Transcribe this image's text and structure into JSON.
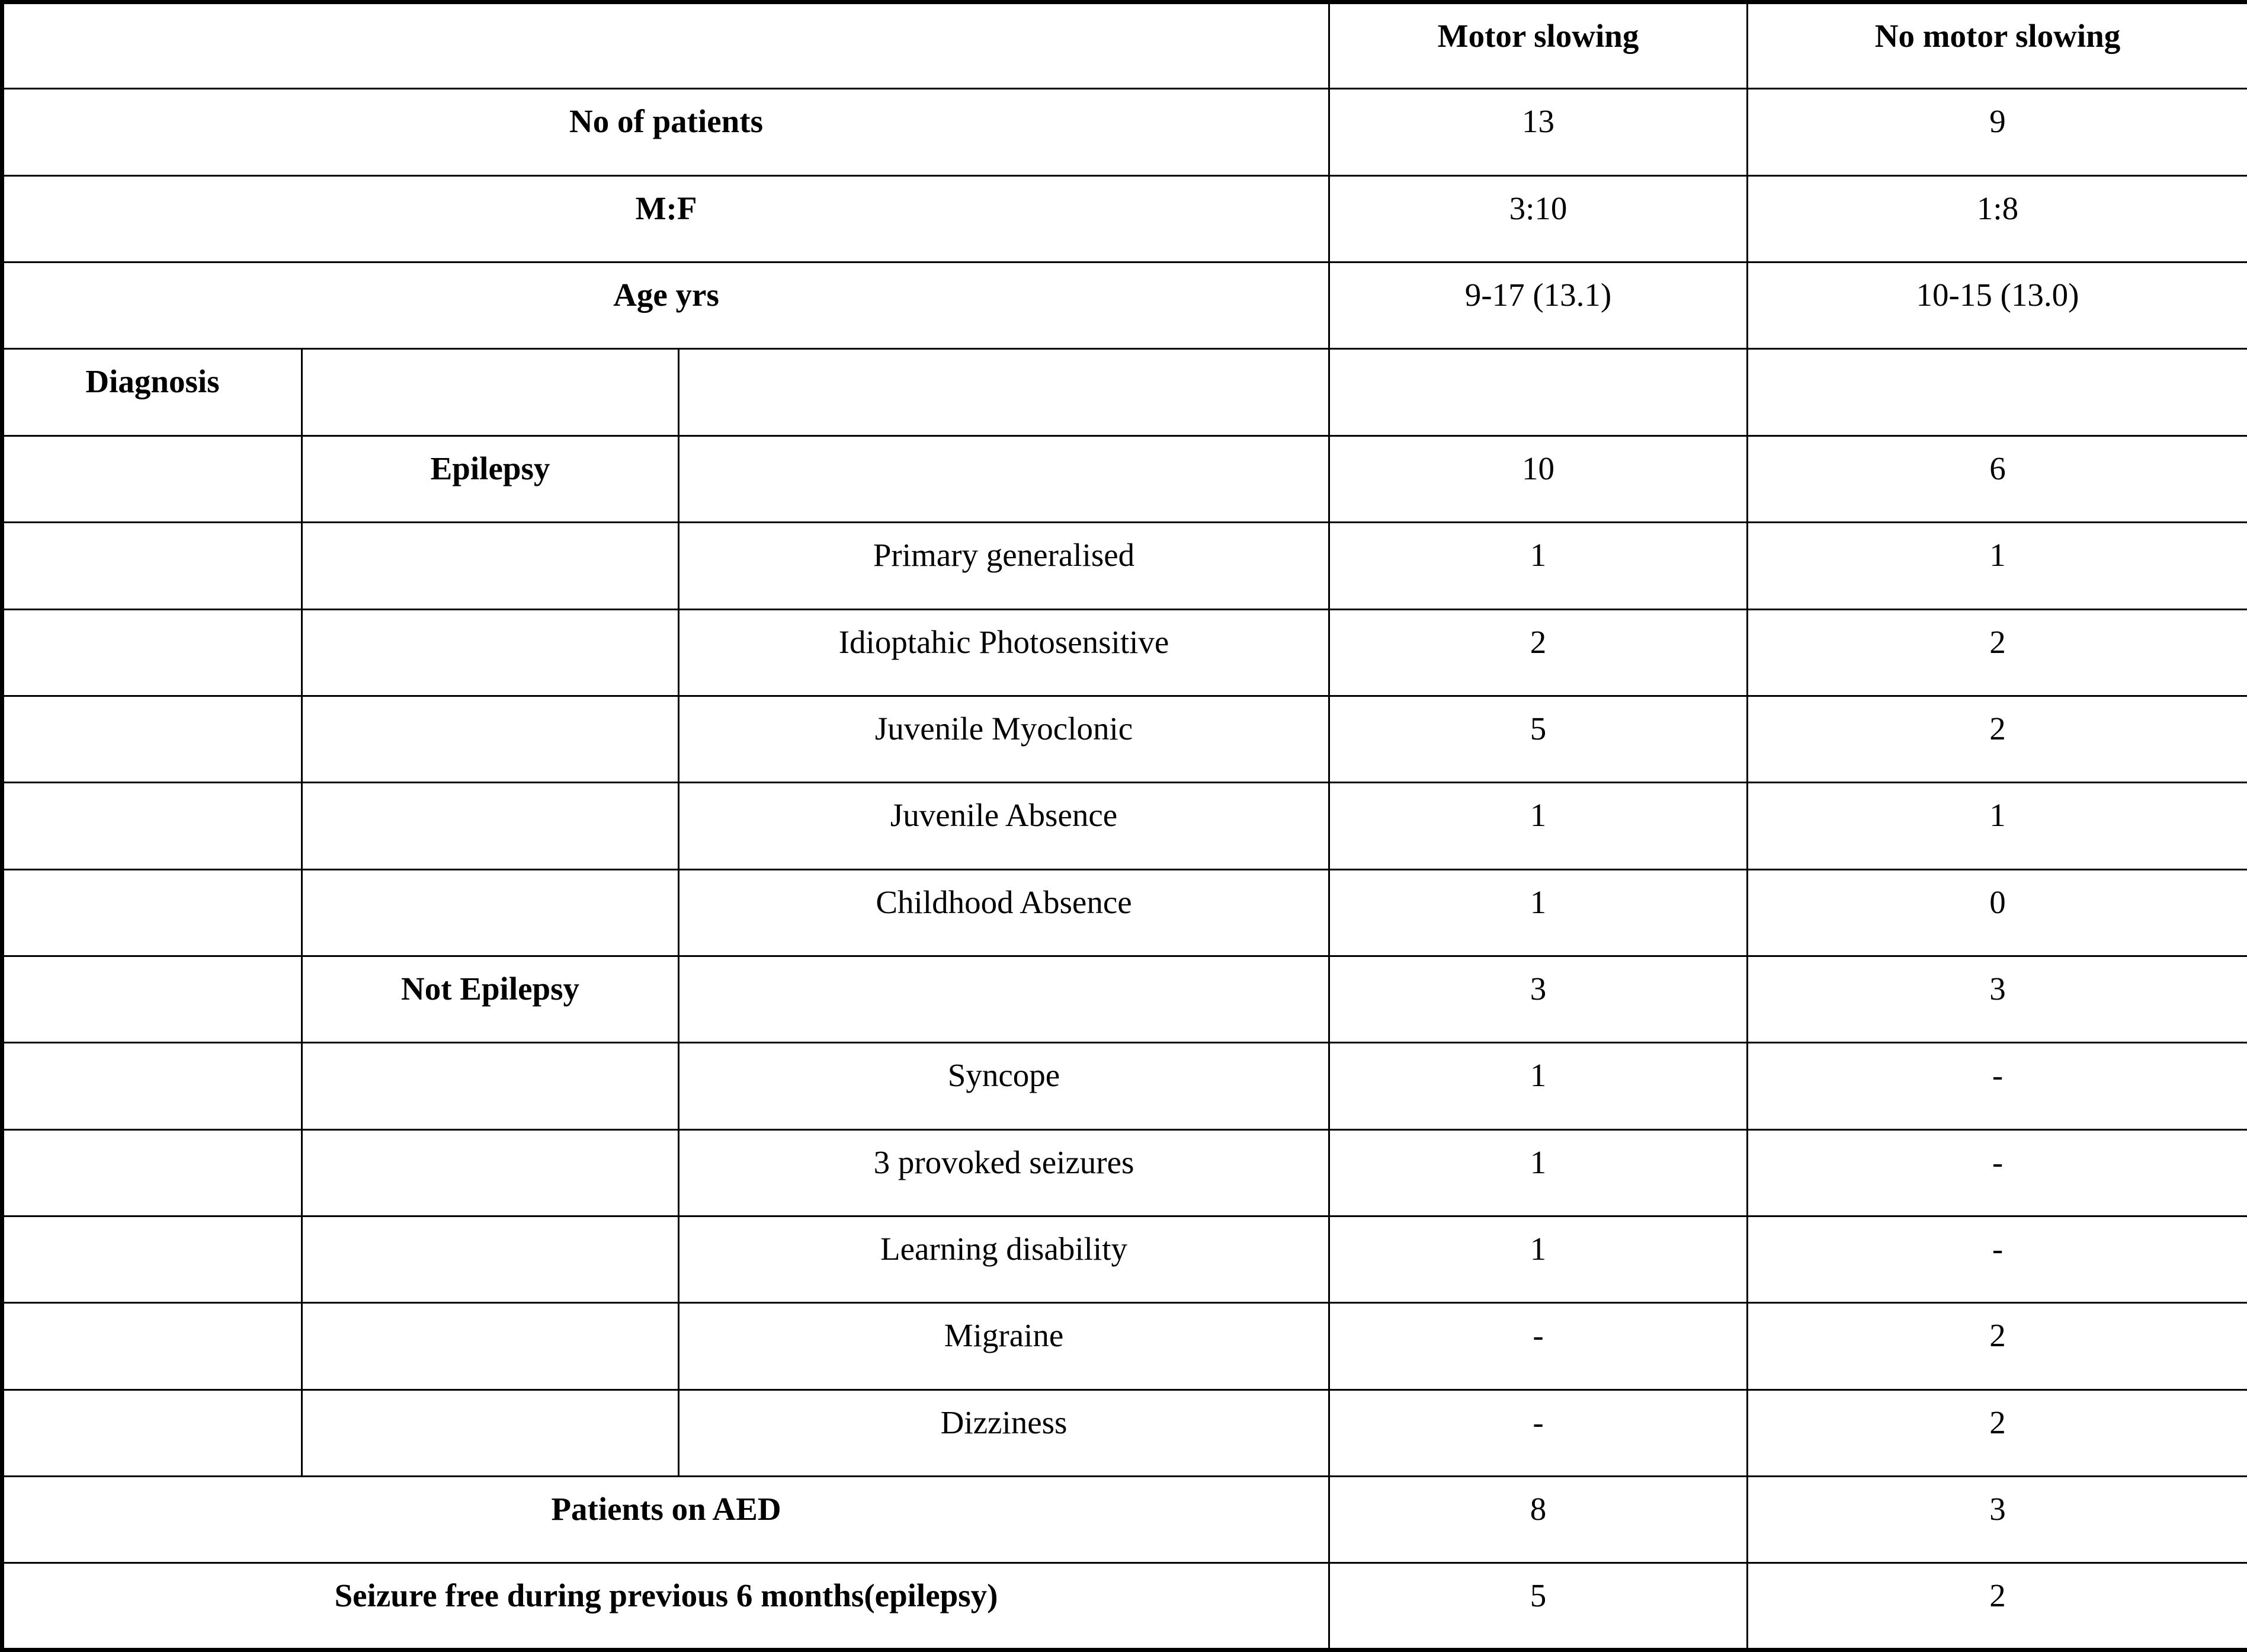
{
  "header": {
    "col1": "Motor slowing",
    "col2": "No motor slowing"
  },
  "summary_top": [
    {
      "label": "No of patients",
      "motor": "13",
      "no_motor": "9"
    },
    {
      "label": "M:F",
      "motor": "3:10",
      "no_motor": "1:8"
    },
    {
      "label": "Age yrs",
      "motor": "9-17 (13.1)",
      "no_motor": "10-15 (13.0)"
    }
  ],
  "diagnosis_label": "Diagnosis",
  "groups": [
    {
      "label": "Epilepsy",
      "motor": "10",
      "no_motor": "6",
      "items": [
        {
          "label": "Primary generalised",
          "motor": "1",
          "no_motor": "1"
        },
        {
          "label": "Idioptahic Photosensitive",
          "motor": "2",
          "no_motor": "2"
        },
        {
          "label": "Juvenile Myoclonic",
          "motor": "5",
          "no_motor": "2"
        },
        {
          "label": "Juvenile Absence",
          "motor": "1",
          "no_motor": "1"
        },
        {
          "label": "Childhood Absence",
          "motor": "1",
          "no_motor": "0"
        }
      ]
    },
    {
      "label": "Not Epilepsy",
      "motor": "3",
      "no_motor": "3",
      "items": [
        {
          "label": "Syncope",
          "motor": "1",
          "no_motor": "-"
        },
        {
          "label": "3 provoked seizures",
          "motor": "1",
          "no_motor": "-"
        },
        {
          "label": "Learning disability",
          "motor": "1",
          "no_motor": "-"
        },
        {
          "label": "Migraine",
          "motor": "-",
          "no_motor": "2"
        },
        {
          "label": "Dizziness",
          "motor": "-",
          "no_motor": "2"
        }
      ]
    }
  ],
  "summary_bottom": [
    {
      "label": "Patients on AED",
      "motor": "8",
      "no_motor": "3"
    },
    {
      "label": "Seizure free during previous 6 months(epilepsy)",
      "motor": "5",
      "no_motor": "2"
    }
  ]
}
